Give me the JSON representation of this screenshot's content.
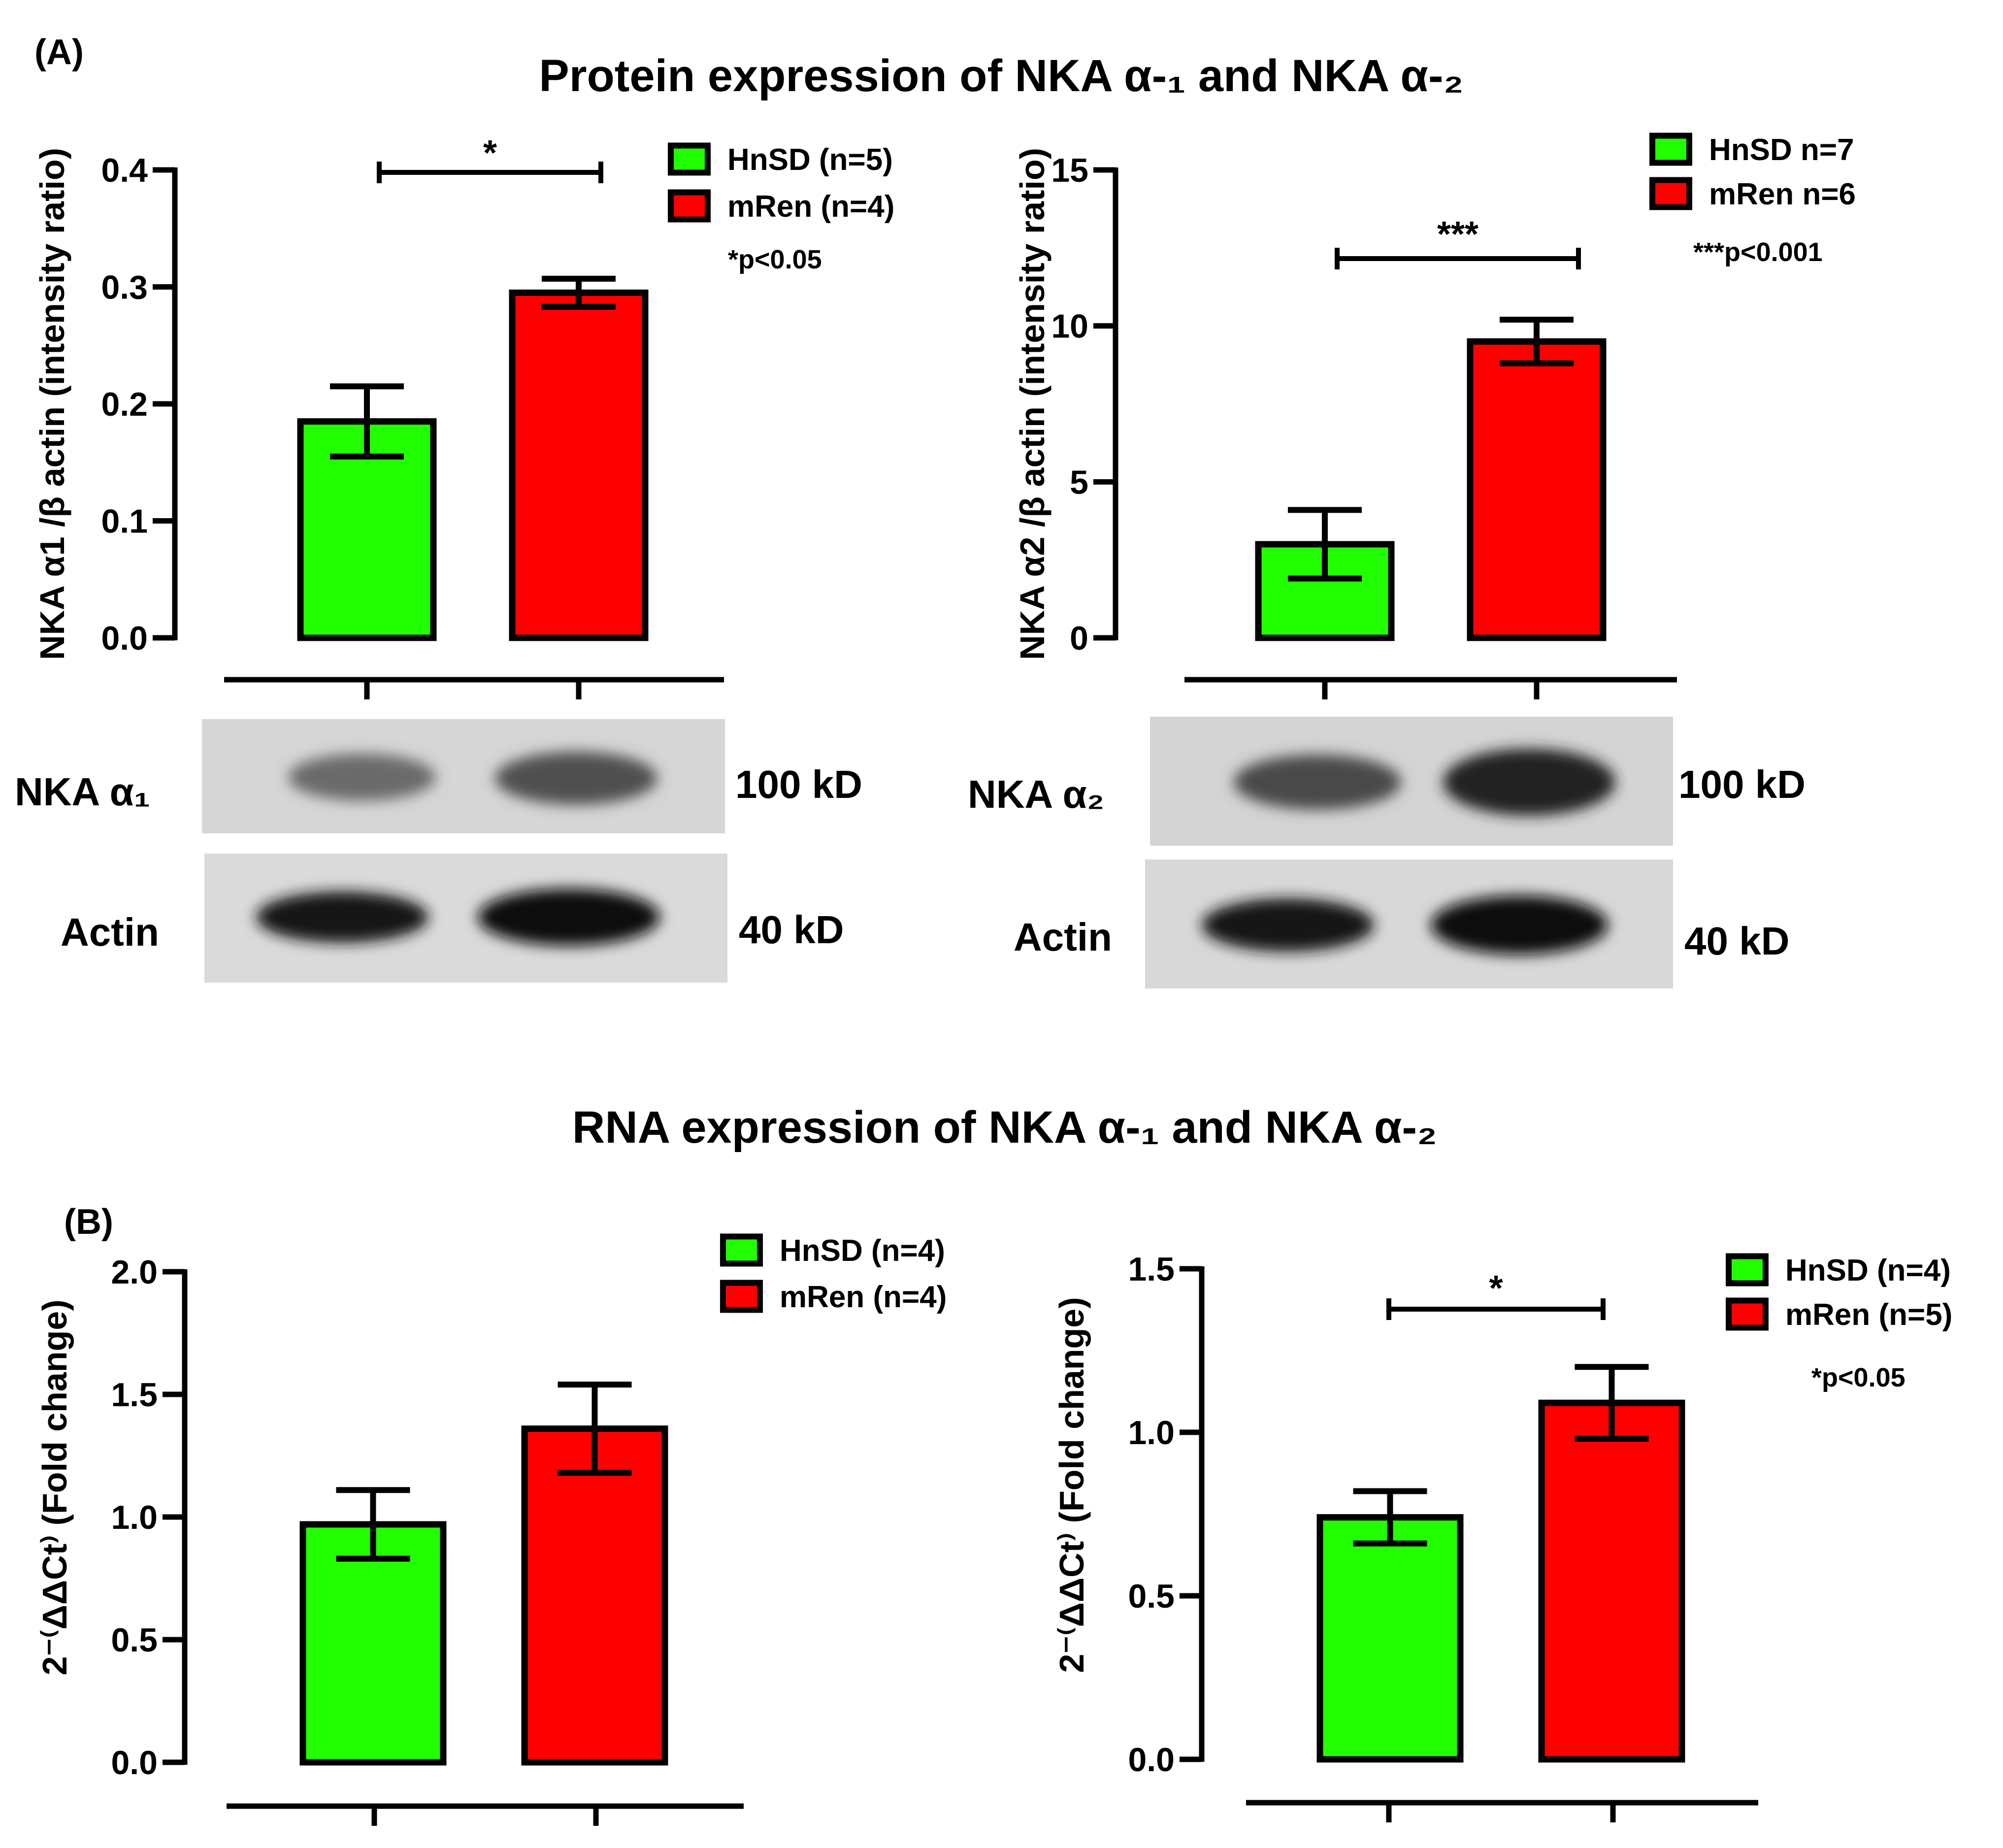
{
  "figure": {
    "panel_a_label": "(A)",
    "panel_b_label": "(B)",
    "protein_title": "Protein expression of NKA α-₁ and NKA α-₂",
    "rna_title": "RNA expression of NKA α-₁ and NKA α-₂"
  },
  "colors": {
    "hnsd": "#22ff00",
    "mren": "#ff0000",
    "axis": "#000000"
  },
  "chart_data": [
    {
      "id": "protein-a1",
      "type": "bar",
      "ylabel": "NKA α1 /β actin (intensity ratio)",
      "ylim": [
        0,
        0.4
      ],
      "yticks": [
        "0.0",
        "0.1",
        "0.2",
        "0.3",
        "0.4"
      ],
      "ytick_values": [
        0,
        0.1,
        0.2,
        0.3,
        0.4
      ],
      "categories": [
        "HnSD",
        "mRen"
      ],
      "values": [
        0.185,
        0.295
      ],
      "errors": [
        0.03,
        0.012
      ],
      "significance": "*",
      "legend": [
        "HnSD (n=5)",
        "mRen (n=4)"
      ],
      "note": "*p<0.05"
    },
    {
      "id": "protein-a2",
      "type": "bar",
      "ylabel": "NKA α2 /β actin (intensity ratio)",
      "ylim": [
        0,
        15
      ],
      "yticks": [
        "0",
        "5",
        "10",
        "15"
      ],
      "ytick_values": [
        0,
        5,
        10,
        15
      ],
      "categories": [
        "HnSD",
        "mRen"
      ],
      "values": [
        3.0,
        9.5
      ],
      "errors": [
        1.1,
        0.7
      ],
      "significance": "***",
      "legend": [
        "HnSD n=7",
        "mRen n=6"
      ],
      "note": "***p<0.001"
    },
    {
      "id": "rna-a1",
      "type": "bar",
      "ylabel": "2⁻⁽ΔΔCt⁾ (Fold change)",
      "ylim": [
        0,
        2.0
      ],
      "yticks": [
        "0.0",
        "0.5",
        "1.0",
        "1.5",
        "2.0"
      ],
      "ytick_values": [
        0,
        0.5,
        1.0,
        1.5,
        2.0
      ],
      "categories": [
        "HnSD",
        "mRen"
      ],
      "values": [
        0.97,
        1.36
      ],
      "errors": [
        0.14,
        0.18
      ],
      "significance": "",
      "legend": [
        "HnSD (n=4)",
        "mRen (n=4)"
      ],
      "note": ""
    },
    {
      "id": "rna-a2",
      "type": "bar",
      "ylabel": "2⁻⁽ΔΔCt⁾ (Fold change)",
      "ylim": [
        0,
        1.5
      ],
      "yticks": [
        "0.0",
        "0.5",
        "1.0",
        "1.5"
      ],
      "ytick_values": [
        0,
        0.5,
        1.0,
        1.5
      ],
      "categories": [
        "HnSD",
        "mRen"
      ],
      "values": [
        0.74,
        1.09
      ],
      "errors": [
        0.08,
        0.11
      ],
      "significance": "*",
      "legend": [
        "HnSD (n=4)",
        "mRen (n=5)"
      ],
      "note": "*p<0.05"
    }
  ],
  "blots": [
    {
      "band_label": "NKA α₁",
      "band_size": "100 kD",
      "actin_label": "Actin",
      "actin_size": "40 kD"
    },
    {
      "band_label": "NKA α₂",
      "band_size": "100 kD",
      "actin_label": "Actin",
      "actin_size": "40 kD"
    }
  ]
}
